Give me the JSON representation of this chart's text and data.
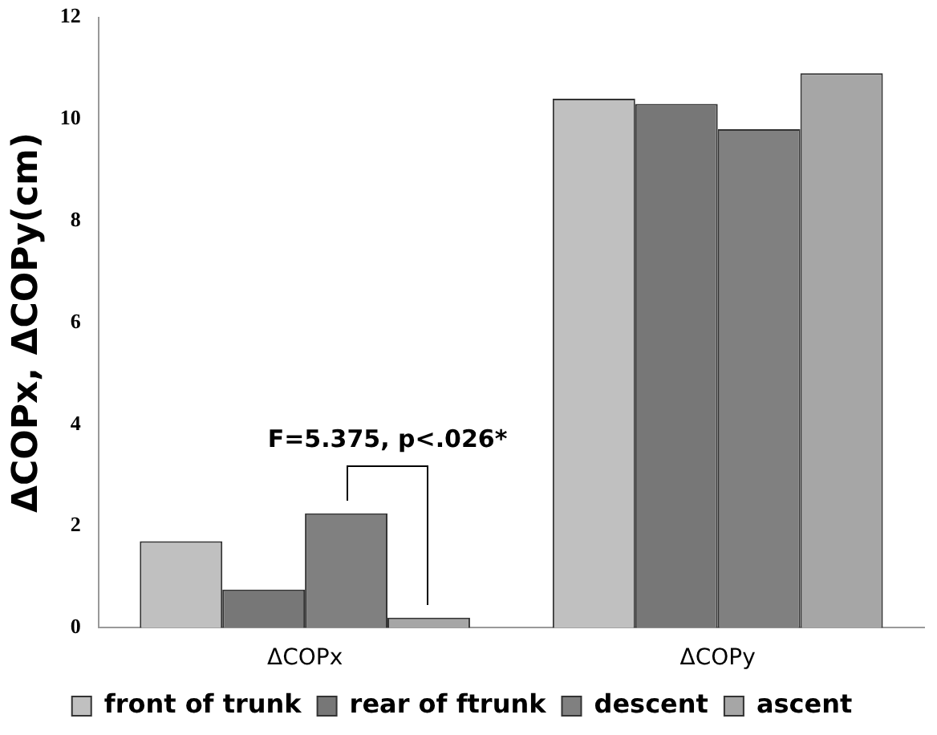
{
  "chart_data": {
    "type": "bar",
    "ylabel": "ΔCOPx, ΔCOPy(cm)",
    "categories": [
      "ΔCOPx",
      "ΔCOPy"
    ],
    "series": [
      {
        "name": "front of trunk",
        "color": "#c0c0c0",
        "values": [
          1.7,
          10.4
        ]
      },
      {
        "name": "rear of ftrunk",
        "color": "#777777",
        "values": [
          0.75,
          10.3
        ]
      },
      {
        "name": "descent",
        "color": "#808080",
        "values": [
          2.25,
          9.8
        ]
      },
      {
        "name": "ascent",
        "color": "#a6a6a6",
        "values": [
          0.2,
          10.9
        ]
      }
    ],
    "ylim": [
      0,
      12
    ],
    "yticks": [
      0,
      2,
      4,
      6,
      8,
      10,
      12
    ],
    "grid": false,
    "legend": "bottom",
    "annotations": [
      "F=5.375, p<.026*"
    ]
  }
}
